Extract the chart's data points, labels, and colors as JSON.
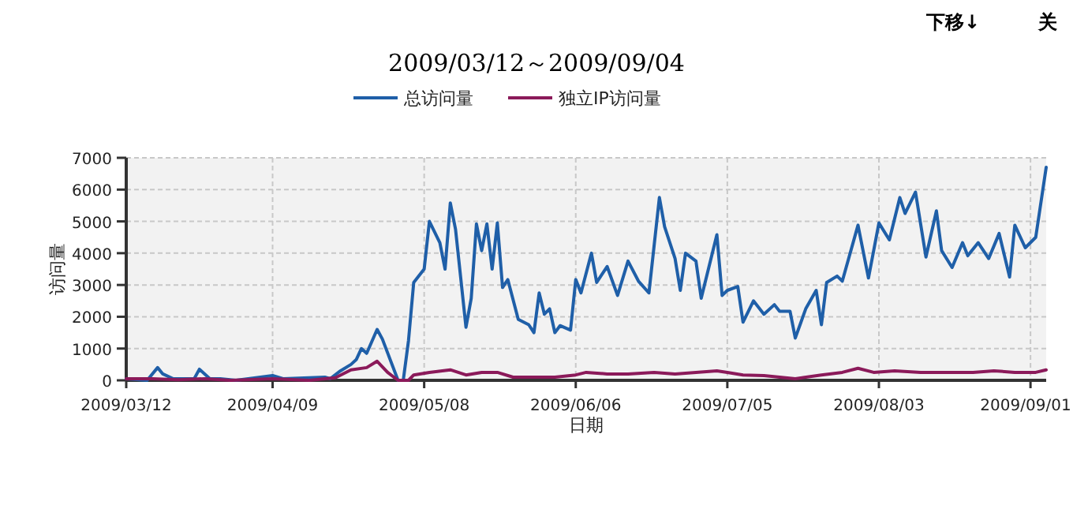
{
  "chart_data": {
    "type": "line",
    "title": "2009/03/12～2009/09/04",
    "xlabel": "日期",
    "ylabel": "访问量",
    "legend": "top",
    "grid": true,
    "line_style": "solid",
    "marker": "none",
    "xlim": [
      "2009-03-12",
      "2009-09-04"
    ],
    "xticks": [
      {
        "value": "2009-03-12",
        "label": "2009/03/12"
      },
      {
        "value": "2009-04-09",
        "label": "2009/04/09"
      },
      {
        "value": "2009-05-08",
        "label": "2009/05/08"
      },
      {
        "value": "2009-06-06",
        "label": "2009/06/06"
      },
      {
        "value": "2009-07-05",
        "label": "2009/07/05"
      },
      {
        "value": "2009-08-03",
        "label": "2009/08/03"
      },
      {
        "value": "2009-09-01",
        "label": "2009/09/01"
      }
    ],
    "ylim": [
      0,
      7000
    ],
    "yticks": [
      0,
      1000,
      2000,
      3000,
      4000,
      5000,
      6000,
      7000
    ],
    "annotations": [
      "下移↓",
      "关"
    ],
    "series": [
      {
        "name": "总访问量",
        "color": "#1f5fa8",
        "x": [
          "2009-03-12",
          "2009-03-16",
          "2009-03-18",
          "2009-03-19",
          "2009-03-21",
          "2009-03-25",
          "2009-03-26",
          "2009-03-28",
          "2009-03-30",
          "2009-04-02",
          "2009-04-09",
          "2009-04-11",
          "2009-04-19",
          "2009-04-20",
          "2009-04-22",
          "2009-04-24",
          "2009-04-25",
          "2009-04-26",
          "2009-04-27",
          "2009-04-29",
          "2009-04-30",
          "2009-05-03",
          "2009-05-04",
          "2009-05-05",
          "2009-05-06",
          "2009-05-08",
          "2009-05-09",
          "2009-05-11",
          "2009-05-12",
          "2009-05-13",
          "2009-05-14",
          "2009-05-16",
          "2009-05-17",
          "2009-05-18",
          "2009-05-19",
          "2009-05-20",
          "2009-05-21",
          "2009-05-22",
          "2009-05-23",
          "2009-05-24",
          "2009-05-26",
          "2009-05-28",
          "2009-05-29",
          "2009-05-30",
          "2009-05-31",
          "2009-06-01",
          "2009-06-02",
          "2009-06-03",
          "2009-06-05",
          "2009-06-06",
          "2009-06-07",
          "2009-06-09",
          "2009-06-10",
          "2009-06-12",
          "2009-06-14",
          "2009-06-16",
          "2009-06-18",
          "2009-06-20",
          "2009-06-22",
          "2009-06-23",
          "2009-06-25",
          "2009-06-26",
          "2009-06-27",
          "2009-06-29",
          "2009-06-30",
          "2009-07-03",
          "2009-07-04",
          "2009-07-05",
          "2009-07-07",
          "2009-07-08",
          "2009-07-10",
          "2009-07-12",
          "2009-07-14",
          "2009-07-15",
          "2009-07-17",
          "2009-07-18",
          "2009-07-20",
          "2009-07-22",
          "2009-07-23",
          "2009-07-24",
          "2009-07-26",
          "2009-07-27",
          "2009-07-30",
          "2009-08-01",
          "2009-08-03",
          "2009-08-05",
          "2009-08-07",
          "2009-08-08",
          "2009-08-10",
          "2009-08-12",
          "2009-08-14",
          "2009-08-15",
          "2009-08-17",
          "2009-08-19",
          "2009-08-20",
          "2009-08-22",
          "2009-08-24",
          "2009-08-26",
          "2009-08-28",
          "2009-08-29",
          "2009-08-31",
          "2009-09-02",
          "2009-09-04"
        ],
        "values": [
          50,
          0,
          400,
          200,
          50,
          50,
          350,
          50,
          50,
          0,
          150,
          50,
          100,
          50,
          300,
          500,
          650,
          1000,
          850,
          1600,
          1300,
          0,
          0,
          1250,
          3080,
          3500,
          5000,
          4330,
          3500,
          5580,
          4750,
          1670,
          2580,
          4920,
          4080,
          4920,
          3500,
          4950,
          2920,
          3170,
          1920,
          1750,
          1500,
          2750,
          2080,
          2250,
          1500,
          1720,
          1580,
          3170,
          2750,
          4000,
          3080,
          3580,
          2670,
          3750,
          3120,
          2750,
          5750,
          4830,
          3830,
          2830,
          4000,
          3750,
          2580,
          4580,
          2670,
          2830,
          2950,
          1830,
          2500,
          2080,
          2380,
          2170,
          2170,
          1330,
          2250,
          2830,
          1750,
          3080,
          3280,
          3120,
          4880,
          3220,
          4950,
          4420,
          5750,
          5250,
          5920,
          3880,
          5330,
          4080,
          3550,
          4330,
          3920,
          4330,
          3830,
          4620,
          3250,
          4880,
          4170,
          4500,
          6700
        ]
      },
      {
        "name": "独立IP访问量",
        "color": "#8b1a5a",
        "x": [
          "2009-03-12",
          "2009-03-17",
          "2009-03-22",
          "2009-03-27",
          "2009-04-01",
          "2009-04-09",
          "2009-04-16",
          "2009-04-21",
          "2009-04-24",
          "2009-04-27",
          "2009-04-29",
          "2009-05-01",
          "2009-05-03",
          "2009-05-05",
          "2009-05-06",
          "2009-05-09",
          "2009-05-13",
          "2009-05-16",
          "2009-05-19",
          "2009-05-22",
          "2009-05-25",
          "2009-05-29",
          "2009-06-02",
          "2009-06-06",
          "2009-06-08",
          "2009-06-12",
          "2009-06-16",
          "2009-06-21",
          "2009-06-25",
          "2009-06-29",
          "2009-07-03",
          "2009-07-05",
          "2009-07-08",
          "2009-07-12",
          "2009-07-18",
          "2009-07-23",
          "2009-07-27",
          "2009-07-30",
          "2009-08-02",
          "2009-08-06",
          "2009-08-11",
          "2009-08-16",
          "2009-08-21",
          "2009-08-25",
          "2009-08-29",
          "2009-09-02",
          "2009-09-04"
        ],
        "values": [
          50,
          50,
          20,
          50,
          0,
          50,
          0,
          80,
          330,
          400,
          600,
          250,
          0,
          0,
          170,
          250,
          330,
          170,
          250,
          250,
          100,
          100,
          100,
          170,
          250,
          200,
          200,
          250,
          200,
          250,
          300,
          250,
          170,
          150,
          50,
          170,
          250,
          380,
          250,
          300,
          250,
          250,
          250,
          300,
          250,
          250,
          330
        ]
      }
    ]
  }
}
